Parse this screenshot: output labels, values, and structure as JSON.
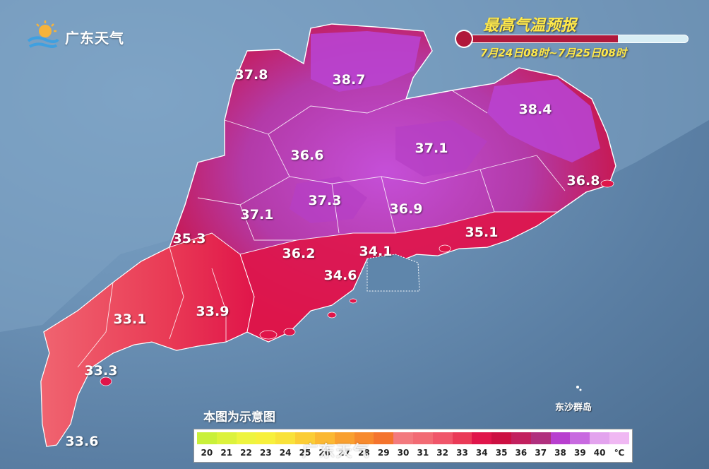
{
  "brand": {
    "logo_text": "广东天气",
    "logo_icon": "sun-cloud-logo-icon"
  },
  "title": "最高气温预报",
  "time_range": "7月24日08时~7月25日08时",
  "thermometer_fill": 0.68,
  "colors": {
    "sea": "#5a7ea3",
    "land_hot": "#e0154a",
    "land_hottest": "#b83fcf",
    "land_warm": "#f0566a"
  },
  "temperatures": [
    {
      "id": "shaoguan-north-west",
      "value": "37.8"
    },
    {
      "id": "shaoguan-north",
      "value": "38.7"
    },
    {
      "id": "meizhou",
      "value": "38.4"
    },
    {
      "id": "qingyuan",
      "value": "36.6"
    },
    {
      "id": "heyuan",
      "value": "37.1"
    },
    {
      "id": "chaozhou",
      "value": "36.8"
    },
    {
      "id": "guangzhou-north",
      "value": "37.3"
    },
    {
      "id": "zhaoqing",
      "value": "37.1"
    },
    {
      "id": "huizhou",
      "value": "36.9"
    },
    {
      "id": "yunfu",
      "value": "35.3"
    },
    {
      "id": "shanwei",
      "value": "35.1"
    },
    {
      "id": "foshan",
      "value": "36.2"
    },
    {
      "id": "shenzhen",
      "value": "34.1"
    },
    {
      "id": "zhongshan",
      "value": "34.6"
    },
    {
      "id": "maoming",
      "value": "33.1"
    },
    {
      "id": "yangjiang",
      "value": "33.9"
    },
    {
      "id": "zhanjiang-north",
      "value": "33.3"
    },
    {
      "id": "zhanjiang-south",
      "value": "33.6"
    }
  ],
  "island_label": "东沙群岛",
  "note": "本图为示意图",
  "legend": {
    "unit": "℃",
    "items": [
      {
        "label": "20",
        "color": "#c9f03a"
      },
      {
        "label": "21",
        "color": "#dcf23c"
      },
      {
        "label": "22",
        "color": "#eef43f"
      },
      {
        "label": "23",
        "color": "#f7f03c"
      },
      {
        "label": "24",
        "color": "#f9e23a"
      },
      {
        "label": "25",
        "color": "#fbcd36"
      },
      {
        "label": "26",
        "color": "#fbb833"
      },
      {
        "label": "27",
        "color": "#f9a030"
      },
      {
        "label": "28",
        "color": "#f78a2e"
      },
      {
        "label": "29",
        "color": "#f4742e"
      },
      {
        "label": "30",
        "color": "#f37a7e"
      },
      {
        "label": "31",
        "color": "#f26b74"
      },
      {
        "label": "32",
        "color": "#f0566a"
      },
      {
        "label": "33",
        "color": "#ea3a57"
      },
      {
        "label": "34",
        "color": "#e0154a"
      },
      {
        "label": "35",
        "color": "#cc1042"
      },
      {
        "label": "36",
        "color": "#c2205e"
      },
      {
        "label": "37",
        "color": "#b0307e"
      },
      {
        "label": "38",
        "color": "#b83fcf"
      },
      {
        "label": "39",
        "color": "#c86ae0"
      },
      {
        "label": "40",
        "color": "#e3a3ee"
      }
    ]
  },
  "watermark": "广东天气"
}
